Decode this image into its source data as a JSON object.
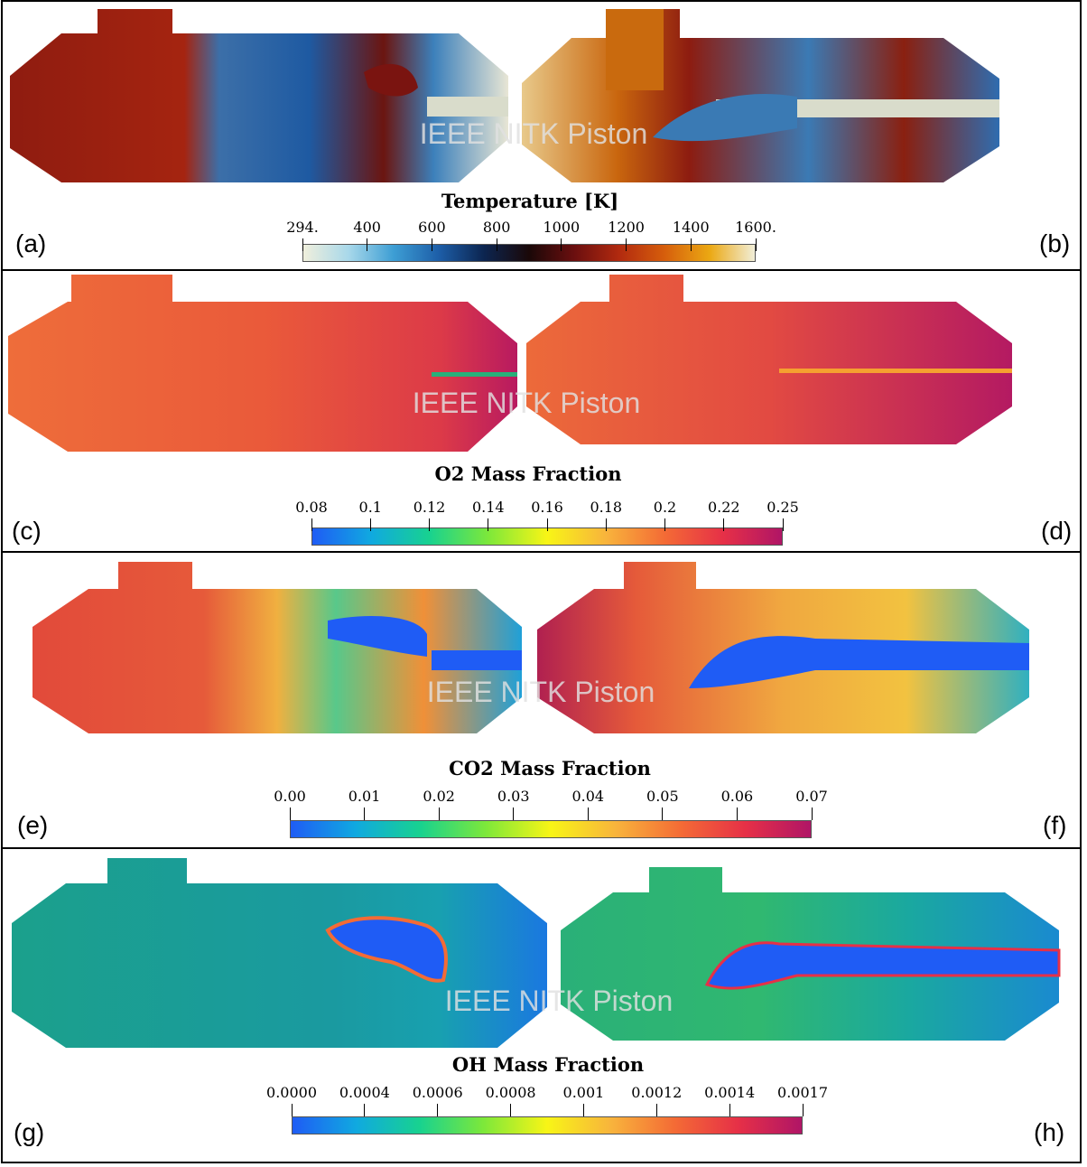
{
  "watermark": "IEEE NITK Piston",
  "panels": [
    {
      "title": "Temperature [K]",
      "left_label": "(a)",
      "right_label": "(b)",
      "ticks": [
        "294.",
        "400",
        "600",
        "800",
        "1000",
        "1200",
        "1400",
        "1600."
      ],
      "colormap": [
        "#f0efdc",
        "#a8d8ea",
        "#3d9ed4",
        "#1d5ea8",
        "#0c2550",
        "#1a0808",
        "#6b0f0f",
        "#b22a0f",
        "#d65e0c",
        "#eba813",
        "#f1eed8"
      ]
    },
    {
      "title": "O2 Mass Fraction",
      "left_label": "(c)",
      "right_label": "(d)",
      "ticks": [
        "0.08",
        "0.1",
        "0.12",
        "0.14",
        "0.16",
        "0.18",
        "0.2",
        "0.22",
        "0.25"
      ],
      "colormap": [
        "#1f5cf5",
        "#10a9e0",
        "#18d28f",
        "#7de83a",
        "#f8f516",
        "#f8b43c",
        "#f46b35",
        "#e63047",
        "#b01566"
      ]
    },
    {
      "title": "CO2 Mass Fraction",
      "left_label": "(e)",
      "right_label": "(f)",
      "ticks": [
        "0.00",
        "0.01",
        "0.02",
        "0.03",
        "0.04",
        "0.05",
        "0.06",
        "0.07"
      ],
      "colormap": [
        "#1f5cf5",
        "#10a9e0",
        "#18d28f",
        "#7de83a",
        "#f8f516",
        "#f8b43c",
        "#f46b35",
        "#e63047",
        "#b01566"
      ]
    },
    {
      "title": "OH Mass Fraction",
      "left_label": "(g)",
      "right_label": "(h)",
      "ticks": [
        "0.0000",
        "0.0004",
        "0.0006",
        "0.0008",
        "0.001",
        "0.0012",
        "0.0014",
        "0.0017"
      ],
      "colormap": [
        "#1f5cf5",
        "#10a9e0",
        "#18d28f",
        "#7de83a",
        "#f8f516",
        "#f8b43c",
        "#f46b35",
        "#e63047",
        "#b01566"
      ]
    }
  ]
}
